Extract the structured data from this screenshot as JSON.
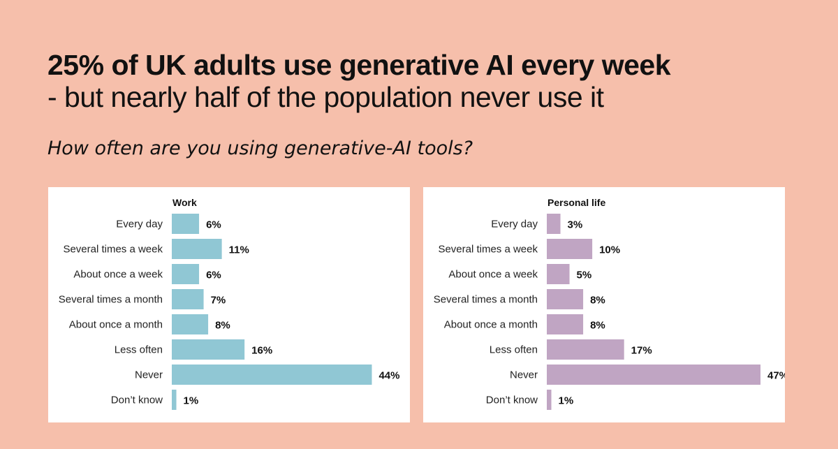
{
  "headline": "25% of UK adults use generative AI every week",
  "subheadline": "- but nearly half of the population never use it",
  "question": "How often are you using generative-AI tools?",
  "colors": {
    "background": "#f6bfab",
    "work_bar": "#90c7d4",
    "personal_bar": "#c0a5c3"
  },
  "chart_data": [
    {
      "type": "bar",
      "orientation": "horizontal",
      "title": "Work",
      "categories": [
        "Every day",
        "Several times a week",
        "About once a week",
        "Several times a month",
        "About once a month",
        "Less often",
        "Never",
        "Don’t know"
      ],
      "values": [
        6,
        11,
        6,
        7,
        8,
        16,
        44,
        1
      ],
      "labels": [
        "6%",
        "11%",
        "6%",
        "7%",
        "8%",
        "16%",
        "44%",
        "1%"
      ],
      "unit": "%",
      "xlim": [
        0,
        47
      ],
      "grid": false,
      "legend": "none"
    },
    {
      "type": "bar",
      "orientation": "horizontal",
      "title": "Personal life",
      "categories": [
        "Every day",
        "Several times a week",
        "About once a week",
        "Several times a month",
        "About once a month",
        "Less often",
        "Never",
        "Don’t know"
      ],
      "values": [
        3,
        10,
        5,
        8,
        8,
        17,
        47,
        1
      ],
      "labels": [
        "3%",
        "10%",
        "5%",
        "8%",
        "8%",
        "17%",
        "47%",
        "1%"
      ],
      "unit": "%",
      "xlim": [
        0,
        47
      ],
      "grid": false,
      "legend": "none"
    }
  ]
}
